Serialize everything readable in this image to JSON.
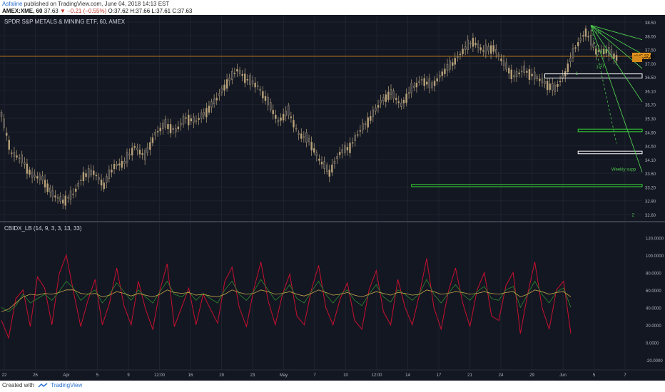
{
  "header": {
    "author": "Asfaline",
    "published": "published on TradingView.com, June 04, 2018 14:13 EST",
    "symbol": "AMEX:XME, 60",
    "last": "37.63",
    "change": "▼ −0.21 (−0.55%)",
    "ohlc": "O:37.62 H:37.66 L:37.61 C:37.63"
  },
  "footer": {
    "created_with": "Created with",
    "brand": "TradingView"
  },
  "colors": {
    "background": "#131722",
    "candle": "#b8a27a",
    "ema_line": "#e8961e",
    "green": "#4ec94e",
    "support_box": "#33cc33",
    "box": "#ffffff",
    "osc": "#c8102e",
    "osc_signal": "#2e8b2e",
    "osc_slow": "#c9a64a"
  },
  "chart_data": [
    {
      "type": "candlestick",
      "title": "SPDR S&P METALS & MINING ETF, 60, AMEX",
      "price_axis": [
        "38.50",
        "38.00",
        "37.50",
        "37.00",
        "36.50",
        "36.10",
        "35.70",
        "35.30",
        "34.90",
        "34.50",
        "34.10",
        "33.60",
        "33.20",
        "32.90",
        "32.60"
      ],
      "time_axis": [
        "22",
        "26",
        "Apr",
        "5",
        "9",
        "12:00",
        "16",
        "19",
        "23",
        "May",
        "7",
        "10",
        "12:00",
        "14",
        "17",
        "21",
        "24",
        "29",
        "Jun",
        "5",
        "7"
      ],
      "ylim": [
        32.5,
        38.7
      ],
      "price_labels": [
        {
          "label": "XME",
          "value": "37.63"
        },
        {
          "label": "",
          "value": "37.54"
        }
      ],
      "horizontal_line": 37.63,
      "annotations": [
        "Weekly supp",
        "1",
        "1",
        "(1)",
        "(1)",
        "(2)",
        "2"
      ],
      "trend_path": [
        [
          0,
          35.8
        ],
        [
          4,
          34.6
        ],
        [
          8,
          34.4
        ],
        [
          12,
          33.9
        ],
        [
          16,
          33.8
        ],
        [
          20,
          33.3
        ],
        [
          24,
          33.1
        ],
        [
          28,
          33.3
        ],
        [
          32,
          33.9
        ],
        [
          36,
          34.0
        ],
        [
          40,
          33.6
        ],
        [
          44,
          34.2
        ],
        [
          48,
          34.3
        ],
        [
          52,
          34.8
        ],
        [
          56,
          34.5
        ],
        [
          60,
          35.2
        ],
        [
          64,
          35.5
        ],
        [
          68,
          35.3
        ],
        [
          72,
          35.7
        ],
        [
          76,
          35.6
        ],
        [
          80,
          35.9
        ],
        [
          84,
          36.3
        ],
        [
          88,
          36.8
        ],
        [
          92,
          37.2
        ],
        [
          96,
          36.9
        ],
        [
          100,
          36.7
        ],
        [
          104,
          36.2
        ],
        [
          108,
          35.6
        ],
        [
          112,
          35.9
        ],
        [
          116,
          35.2
        ],
        [
          120,
          35.0
        ],
        [
          124,
          34.4
        ],
        [
          128,
          34.0
        ],
        [
          132,
          34.6
        ],
        [
          136,
          34.8
        ],
        [
          140,
          35.3
        ],
        [
          144,
          35.7
        ],
        [
          148,
          36.2
        ],
        [
          152,
          36.5
        ],
        [
          156,
          36.1
        ],
        [
          160,
          36.6
        ],
        [
          164,
          36.9
        ],
        [
          168,
          36.7
        ],
        [
          172,
          37.1
        ],
        [
          176,
          37.4
        ],
        [
          180,
          37.8
        ],
        [
          184,
          38.1
        ],
        [
          188,
          37.8
        ],
        [
          192,
          37.9
        ],
        [
          196,
          37.4
        ],
        [
          200,
          37.0
        ],
        [
          204,
          37.2
        ],
        [
          208,
          37.0
        ],
        [
          212,
          36.8
        ],
        [
          216,
          36.6
        ],
        [
          220,
          37.1
        ],
        [
          224,
          37.9
        ],
        [
          228,
          38.4
        ],
        [
          232,
          37.8
        ],
        [
          236,
          37.8
        ],
        [
          240,
          37.6
        ]
      ],
      "boxes": [
        {
          "x": [
            212,
            250
          ],
          "y": [
            36.95,
            37.08
          ],
          "color": "white"
        },
        {
          "x": [
            225,
            250
          ],
          "y": [
            35.27,
            35.35
          ],
          "color": "green"
        },
        {
          "x": [
            225,
            250
          ],
          "y": [
            34.58,
            34.66
          ],
          "color": "white"
        },
        {
          "x": [
            160,
            250
          ],
          "y": [
            33.55,
            33.62
          ],
          "color": "green"
        }
      ],
      "fan": {
        "apex": [
          230,
          38.6
        ],
        "ends": [
          [
            250,
            38.15
          ],
          [
            250,
            37.7
          ],
          [
            250,
            37.25
          ],
          [
            250,
            36.2
          ],
          [
            250,
            34.0
          ]
        ]
      }
    },
    {
      "type": "line",
      "title": "CBIDX_LB (14, 9, 3, 3, 13, 33)",
      "y_axis": [
        "120.0000",
        "100.0000",
        "80.0000",
        "60.0000",
        "40.0000",
        "20.0000",
        "0.0000",
        "-20.0000"
      ],
      "ylim": [
        -30,
        130
      ],
      "series": [
        {
          "color": "red",
          "values": [
            25,
            5,
            50,
            60,
            18,
            75,
            62,
            20,
            78,
            100,
            58,
            18,
            48,
            72,
            20,
            45,
            85,
            42,
            20,
            70,
            38,
            15,
            60,
            90,
            18,
            40,
            62,
            20,
            55,
            38,
            22,
            70,
            86,
            40,
            18,
            60,
            92,
            48,
            20,
            55,
            78,
            30,
            20,
            60,
            88,
            40,
            20,
            50,
            68,
            25,
            15,
            60,
            82,
            35,
            20,
            72,
            40,
            20,
            55,
            96,
            40,
            15,
            58,
            85,
            45,
            18,
            60,
            80,
            30,
            25,
            65,
            80,
            10,
            55,
            92,
            40,
            15,
            60,
            70,
            10
          ]
        },
        {
          "color": "green",
          "values": [
            40,
            35,
            42,
            55,
            45,
            50,
            55,
            48,
            58,
            70,
            62,
            48,
            55,
            60,
            45,
            55,
            68,
            58,
            48,
            60,
            52,
            45,
            58,
            70,
            55,
            52,
            58,
            48,
            56,
            50,
            45,
            60,
            70,
            55,
            48,
            58,
            72,
            60,
            48,
            55,
            66,
            50,
            45,
            58,
            70,
            55,
            45,
            55,
            60,
            48,
            42,
            55,
            66,
            52,
            46,
            60,
            55,
            48,
            56,
            72,
            55,
            45,
            56,
            66,
            55,
            48,
            58,
            64,
            50,
            48,
            60,
            64,
            40,
            55,
            70,
            55,
            45,
            58,
            62,
            40
          ]
        },
        {
          "color": "orange",
          "values": [
            35,
            38,
            45,
            52,
            55,
            54,
            56,
            55,
            57,
            60,
            60,
            56,
            55,
            56,
            52,
            54,
            58,
            56,
            53,
            56,
            54,
            52,
            55,
            60,
            57,
            56,
            57,
            54,
            55,
            53,
            52,
            55,
            60,
            57,
            55,
            56,
            60,
            58,
            55,
            56,
            58,
            55,
            53,
            56,
            60,
            57,
            54,
            55,
            57,
            54,
            52,
            55,
            58,
            56,
            54,
            57,
            56,
            54,
            55,
            60,
            58,
            55,
            56,
            58,
            57,
            55,
            56,
            58,
            56,
            55,
            57,
            58,
            52,
            55,
            60,
            58,
            55,
            57,
            58,
            52
          ]
        }
      ]
    }
  ]
}
